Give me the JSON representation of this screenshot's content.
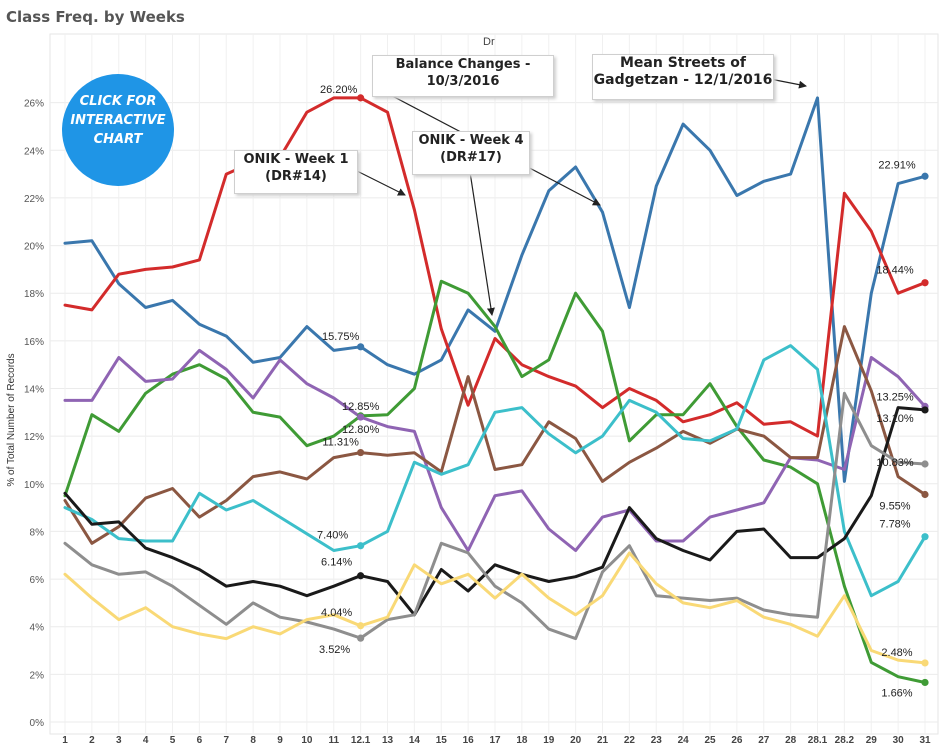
{
  "page_title": "Class Freq. by Weeks",
  "header_label": "Dr",
  "click_badge": {
    "line1": "CLICK FOR",
    "line2": "INTERACTIVE",
    "line3": "CHART"
  },
  "callouts": [
    {
      "line1": "Balance Changes -",
      "line2": "10/3/2016"
    },
    {
      "line1": "Mean Streets of",
      "line2": "Gadgetzan - 12/1/2016"
    },
    {
      "line1": "ONIK - Week 1",
      "line2": "(DR#14)"
    },
    {
      "line1": "ONIK - Week 4",
      "line2": "(DR#17)"
    }
  ],
  "chart_data": {
    "type": "line",
    "title": "Class Freq. by Weeks",
    "ylabel": "% of Total Number of Records",
    "xlabel": "",
    "ylim": [
      0,
      28
    ],
    "yticks": [
      0,
      2,
      4,
      6,
      8,
      10,
      12,
      14,
      16,
      18,
      20,
      22,
      24,
      26
    ],
    "ytick_labels": [
      "0%",
      "2%",
      "4%",
      "6%",
      "8%",
      "10%",
      "12%",
      "14%",
      "16%",
      "18%",
      "20%",
      "22%",
      "24%",
      "26%"
    ],
    "grid": true,
    "categories": [
      "1",
      "2",
      "3",
      "4",
      "5",
      "6",
      "7",
      "8",
      "9",
      "10",
      "11",
      "12.1",
      "13",
      "14",
      "15",
      "16",
      "17",
      "18",
      "19",
      "20",
      "21",
      "22",
      "23",
      "24",
      "25",
      "26",
      "27",
      "28",
      "28.1",
      "28.2",
      "29",
      "30",
      "31"
    ],
    "series": [
      {
        "color": "#3a77ad",
        "values": [
          20.1,
          20.2,
          18.4,
          17.4,
          17.7,
          16.7,
          16.2,
          15.1,
          15.3,
          16.6,
          15.6,
          15.75,
          15.0,
          14.6,
          15.2,
          17.3,
          16.4,
          19.6,
          22.3,
          23.3,
          21.4,
          17.4,
          22.5,
          25.1,
          24.0,
          22.1,
          22.7,
          23.0,
          26.2,
          10.1,
          18.0,
          22.6,
          22.91
        ]
      },
      {
        "color": "#d32b2b",
        "values": [
          17.5,
          17.3,
          18.8,
          19.0,
          19.1,
          19.4,
          23.0,
          23.5,
          23.7,
          25.6,
          26.2,
          26.2,
          25.6,
          21.5,
          16.5,
          13.3,
          16.1,
          15.0,
          14.5,
          14.1,
          13.2,
          14.0,
          13.5,
          12.6,
          12.9,
          13.4,
          12.5,
          12.6,
          12.0,
          22.2,
          20.6,
          18.0,
          18.44
        ]
      },
      {
        "color": "#3f9b35",
        "values": [
          9.5,
          12.9,
          12.2,
          13.8,
          14.6,
          15.0,
          14.4,
          13.0,
          12.8,
          11.6,
          12.0,
          12.85,
          12.9,
          14.0,
          18.5,
          18.0,
          16.6,
          14.5,
          15.2,
          18.0,
          16.4,
          11.8,
          12.9,
          12.9,
          14.2,
          12.4,
          11.0,
          10.7,
          10.0,
          5.7,
          2.5,
          1.9,
          1.66
        ]
      },
      {
        "color": "#8f64b3",
        "values": [
          13.5,
          13.5,
          15.3,
          14.3,
          14.4,
          15.6,
          14.8,
          13.6,
          15.2,
          14.2,
          13.6,
          12.8,
          12.4,
          12.2,
          9.0,
          7.2,
          9.5,
          9.7,
          8.1,
          7.2,
          8.6,
          8.9,
          7.6,
          7.6,
          8.6,
          8.9,
          9.2,
          11.1,
          11.0,
          10.6,
          15.3,
          14.5,
          13.25
        ]
      },
      {
        "color": "#8b5742",
        "values": [
          9.3,
          7.5,
          8.2,
          9.4,
          9.8,
          8.6,
          9.3,
          10.3,
          10.5,
          10.2,
          11.1,
          11.31,
          11.2,
          11.3,
          10.5,
          14.5,
          10.6,
          10.8,
          12.6,
          11.9,
          10.1,
          10.9,
          11.5,
          12.2,
          11.7,
          12.3,
          12.0,
          11.1,
          11.1,
          16.6,
          13.9,
          10.3,
          9.55
        ]
      },
      {
        "color": "#3cbfca",
        "values": [
          9.0,
          8.5,
          7.7,
          7.6,
          7.6,
          9.6,
          8.9,
          9.3,
          8.6,
          7.9,
          7.2,
          7.4,
          8.0,
          10.9,
          10.4,
          10.8,
          13.0,
          13.2,
          12.1,
          11.3,
          12.0,
          13.5,
          13.0,
          11.9,
          11.8,
          12.3,
          15.2,
          15.8,
          14.8,
          8.0,
          5.3,
          5.9,
          7.78
        ]
      },
      {
        "color": "#1a1a1a",
        "values": [
          9.6,
          8.3,
          8.4,
          7.3,
          6.9,
          6.4,
          5.7,
          5.9,
          5.7,
          5.3,
          5.7,
          6.14,
          5.9,
          4.5,
          6.4,
          5.5,
          6.6,
          6.2,
          5.9,
          6.1,
          6.5,
          9.0,
          7.7,
          7.2,
          6.8,
          8.0,
          8.1,
          6.9,
          6.9,
          7.7,
          9.5,
          13.2,
          13.1
        ]
      },
      {
        "color": "#8e8e8e",
        "values": [
          7.5,
          6.6,
          6.2,
          6.3,
          5.7,
          4.9,
          4.1,
          5.0,
          4.4,
          4.2,
          3.9,
          3.52,
          4.3,
          4.5,
          7.5,
          7.1,
          5.7,
          5.0,
          3.9,
          3.5,
          6.3,
          7.4,
          5.3,
          5.2,
          5.1,
          5.2,
          4.7,
          4.5,
          4.4,
          13.8,
          11.6,
          10.9,
          10.83
        ]
      },
      {
        "color": "#f9d976",
        "values": [
          6.2,
          5.2,
          4.3,
          4.8,
          4.0,
          3.7,
          3.5,
          4.0,
          3.7,
          4.3,
          4.5,
          4.04,
          4.4,
          6.6,
          5.8,
          6.2,
          5.2,
          6.2,
          5.2,
          4.5,
          5.3,
          7.1,
          5.8,
          5.0,
          4.8,
          5.1,
          4.4,
          4.1,
          3.6,
          5.3,
          3.0,
          2.6,
          2.48
        ]
      }
    ],
    "data_labels": [
      {
        "series": 1,
        "index": 11,
        "text": "26.20%"
      },
      {
        "series": 0,
        "index": 11,
        "text": "15.75%"
      },
      {
        "series": 2,
        "index": 11,
        "text": "12.85%"
      },
      {
        "series": 3,
        "index": 11,
        "text": "12.80%"
      },
      {
        "series": 4,
        "index": 11,
        "text": "11.31%"
      },
      {
        "series": 5,
        "index": 11,
        "text": "7.40%"
      },
      {
        "series": 6,
        "index": 11,
        "text": "6.14%"
      },
      {
        "series": 8,
        "index": 11,
        "text": "4.04%"
      },
      {
        "series": 7,
        "index": 11,
        "text": "3.52%"
      },
      {
        "series": 0,
        "index": 32,
        "text": "22.91%"
      },
      {
        "series": 1,
        "index": 32,
        "text": "18.44%"
      },
      {
        "series": 3,
        "index": 32,
        "text": "13.25%"
      },
      {
        "series": 6,
        "index": 32,
        "text": "13.10%"
      },
      {
        "series": 7,
        "index": 32,
        "text": "10.83%"
      },
      {
        "series": 4,
        "index": 32,
        "text": "9.55%"
      },
      {
        "series": 5,
        "index": 32,
        "text": "7.78%"
      },
      {
        "series": 8,
        "index": 32,
        "text": "2.48%"
      },
      {
        "series": 2,
        "index": 32,
        "text": "1.66%"
      }
    ]
  }
}
